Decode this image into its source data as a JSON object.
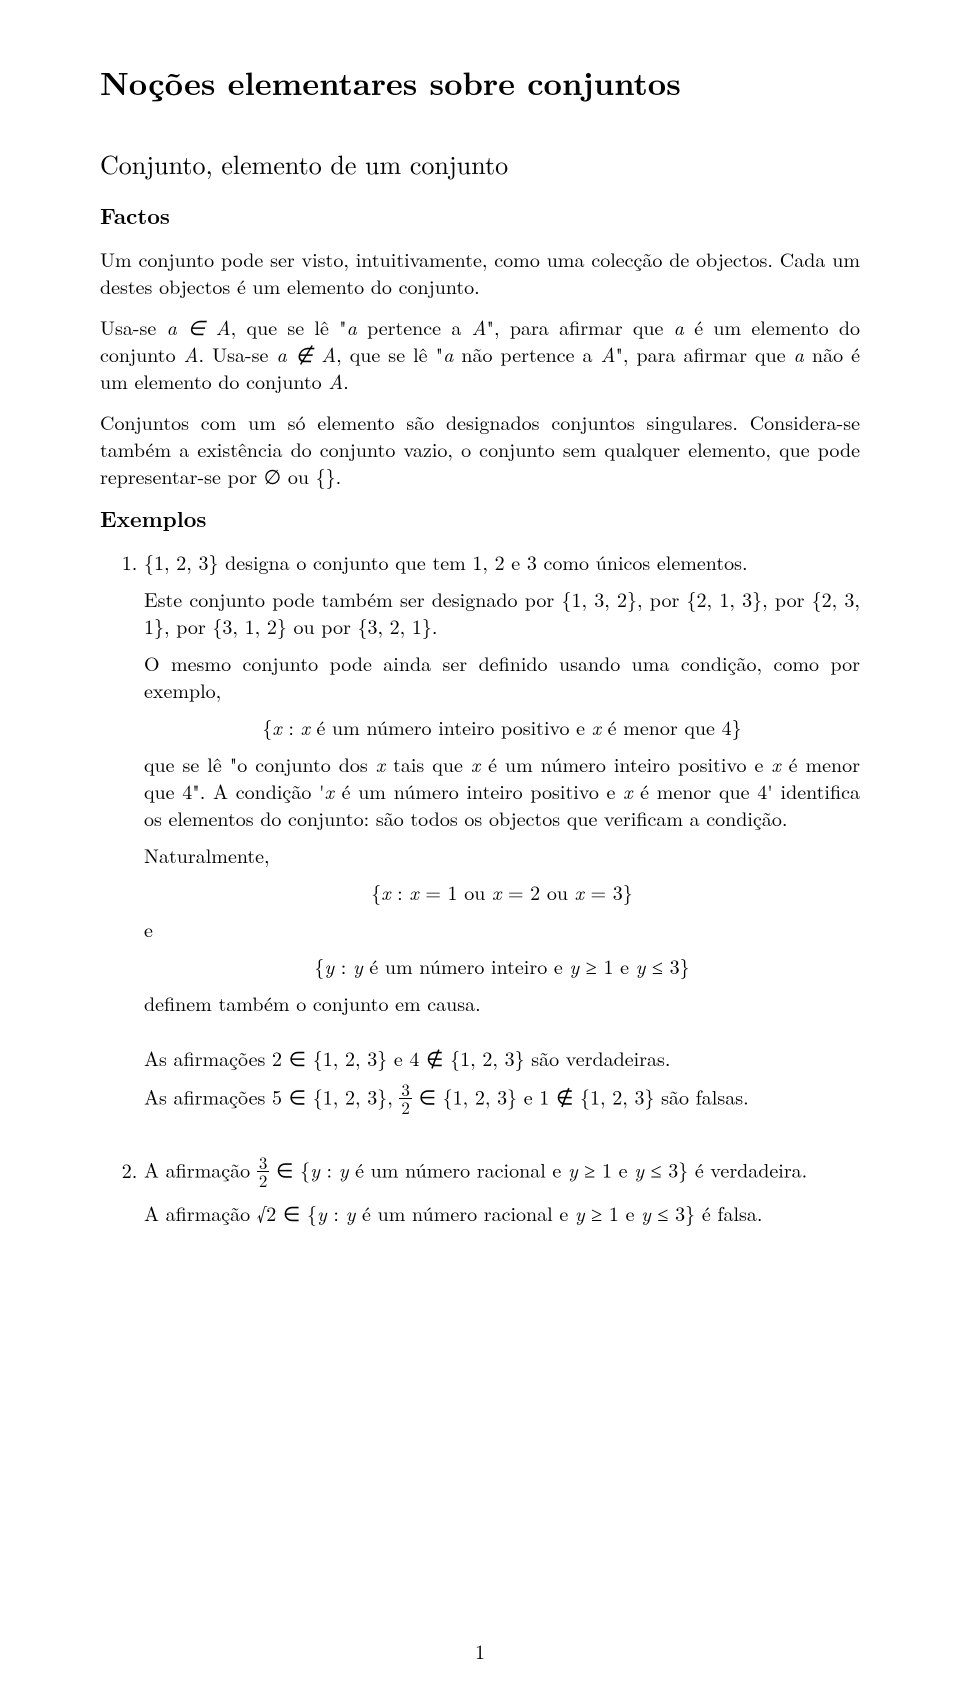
{
  "title": "Noções elementares sobre conjuntos",
  "section1": "Conjunto, elemento de um conjunto",
  "factos_heading": "Factos",
  "p1": "Um conjunto pode ser visto, intuitivamente, como uma colecção de objectos. Cada um destes objectos é um elemento do conjunto.",
  "p2_pre": "Usa-se ",
  "p2_m1": "a ∈ A",
  "p2_mid1": ", que se lê \"",
  "p2_m2": "a",
  "p2_mid2": " pertence a ",
  "p2_m3": "A",
  "p2_mid3": "\", para afirmar que ",
  "p2_m4": "a",
  "p2_mid4": " é um elemento do conjunto ",
  "p2_m5": "A",
  "p2_mid5": ". Usa-se ",
  "p2_m6": "a ∉ A",
  "p2_mid6": ", que se lê \"",
  "p2_m7": "a",
  "p2_mid7": " não pertence a ",
  "p2_m8": "A",
  "p2_mid8": "\", para afirmar que ",
  "p2_m9": "a",
  "p2_mid9": " não é um elemento do conjunto ",
  "p2_m10": "A",
  "p2_end": ".",
  "p3": "Conjuntos com um só elemento são designados conjuntos singulares. Considera-se também a existência do conjunto vazio, o conjunto sem qualquer elemento, que pode representar-se por ∅ ou {}.",
  "exemplos_heading": "Exemplos",
  "ex1_a": "{1, 2, 3} designa o conjunto que tem 1, 2 e 3 como únicos elementos.",
  "ex1_b": "Este conjunto pode também ser designado por {1, 3, 2}, por {2, 1, 3}, por {2, 3, 1}, por {3, 1, 2} ou por {3, 2, 1}.",
  "ex1_c": "O mesmo conjunto pode ainda ser definido usando uma condição, como por exemplo,",
  "ex1_set1_pre": "{",
  "ex1_set1_x1": "x",
  "ex1_set1_mid1": " : ",
  "ex1_set1_x2": "x",
  "ex1_set1_mid2": " é um número inteiro positivo e ",
  "ex1_set1_x3": "x",
  "ex1_set1_end": " é menor que 4}",
  "ex1_d_pre": "que se lê \"o conjunto dos ",
  "ex1_d_x1": "x",
  "ex1_d_mid1": " tais que ",
  "ex1_d_x2": "x",
  "ex1_d_mid2": " é um número inteiro positivo e ",
  "ex1_d_x3": "x",
  "ex1_d_mid3": " é menor que 4\". A condição '",
  "ex1_d_x4": "x",
  "ex1_d_mid4": " é um número inteiro positivo e ",
  "ex1_d_x5": "x",
  "ex1_d_end": " é menor que 4' identifica os elementos do conjunto: são todos os objectos que verificam a condição.",
  "ex1_e": "Naturalmente,",
  "ex1_set2_pre": "{",
  "ex1_set2_x1": "x",
  "ex1_set2_mid1": " : ",
  "ex1_set2_x2": "x",
  "ex1_set2_mid2": " = 1 ou ",
  "ex1_set2_x3": "x",
  "ex1_set2_mid3": " = 2 ou ",
  "ex1_set2_x4": "x",
  "ex1_set2_end": " = 3}",
  "ex1_f": "e",
  "ex1_set3_pre": "{",
  "ex1_set3_y1": "y",
  "ex1_set3_mid1": " : ",
  "ex1_set3_y2": "y",
  "ex1_set3_mid2": " é um número inteiro e ",
  "ex1_set3_y3": "y",
  "ex1_set3_mid3": " ≥ 1 e ",
  "ex1_set3_y4": "y",
  "ex1_set3_end": " ≤ 3}",
  "ex1_g": "definem também o conjunto em causa.",
  "ex1_h": "As afirmações 2 ∈ {1, 2, 3} e 4 ∉ {1, 2, 3} são verdadeiras.",
  "ex1_i_pre": "As afirmações 5 ∈ {1, 2, 3}, ",
  "ex1_i_frac_n": "3",
  "ex1_i_frac_d": "2",
  "ex1_i_end": " ∈ {1, 2, 3} e 1 ∉ {1, 2, 3} são falsas.",
  "ex2_a_pre": "A afirmação ",
  "ex2_a_frac_n": "3",
  "ex2_a_frac_d": "2",
  "ex2_a_mid1": " ∈ {",
  "ex2_a_y1": "y",
  "ex2_a_mid2": " : ",
  "ex2_a_y2": "y",
  "ex2_a_mid3": " é um número racional e ",
  "ex2_a_y3": "y",
  "ex2_a_mid4": " ≥ 1 e ",
  "ex2_a_y4": "y",
  "ex2_a_end": " ≤ 3} é verdadeira.",
  "ex2_b_pre": "A afirmação √2 ∈ {",
  "ex2_b_y1": "y",
  "ex2_b_mid1": " : ",
  "ex2_b_y2": "y",
  "ex2_b_mid2": " é um número racional e ",
  "ex2_b_y3": "y",
  "ex2_b_mid3": " ≥ 1 e ",
  "ex2_b_y4": "y",
  "ex2_b_end": " ≤ 3} é falsa.",
  "pagenum": "1"
}
